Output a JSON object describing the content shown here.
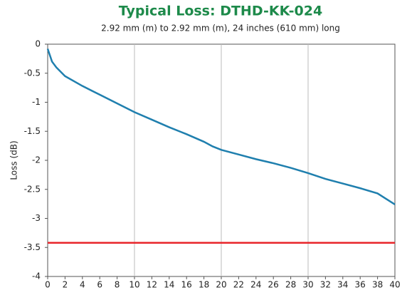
{
  "chart_data": {
    "type": "line",
    "title": "Typical Loss: DTHD-KK-024",
    "subtitle": "2.92 mm (m) to 2.92 mm (m), 24 inches (610 mm) long",
    "y_label": "Loss (dB)",
    "xlim": [
      0,
      40
    ],
    "xticks": [
      0,
      2,
      4,
      6,
      8,
      10,
      12,
      14,
      16,
      18,
      20,
      22,
      24,
      26,
      28,
      30,
      32,
      34,
      36,
      38,
      40
    ],
    "ylim": [
      -4,
      0
    ],
    "yticks": [
      0,
      -0.5,
      -1,
      -1.5,
      -2,
      -2.5,
      -3,
      -3.5,
      -4
    ],
    "xgrid": [
      10,
      20,
      30
    ],
    "series": [
      {
        "color": "#1f7fae",
        "x": [
          0,
          0.5,
          1,
          2,
          4,
          6,
          8,
          10,
          12,
          14,
          16,
          18,
          19,
          20,
          22,
          24,
          26,
          28,
          30,
          32,
          34,
          36,
          38,
          40
        ],
        "values": [
          -0.08,
          -0.3,
          -0.4,
          -0.55,
          -0.72,
          -0.87,
          -1.02,
          -1.17,
          -1.3,
          -1.43,
          -1.55,
          -1.68,
          -1.76,
          -1.82,
          -1.9,
          -1.98,
          -2.05,
          -2.13,
          -2.22,
          -2.32,
          -2.4,
          -2.48,
          -2.57,
          -2.76
        ]
      },
      {
        "color": "#e8252a",
        "x": [
          0,
          40
        ],
        "values": [
          -3.42,
          -3.42
        ]
      }
    ]
  }
}
